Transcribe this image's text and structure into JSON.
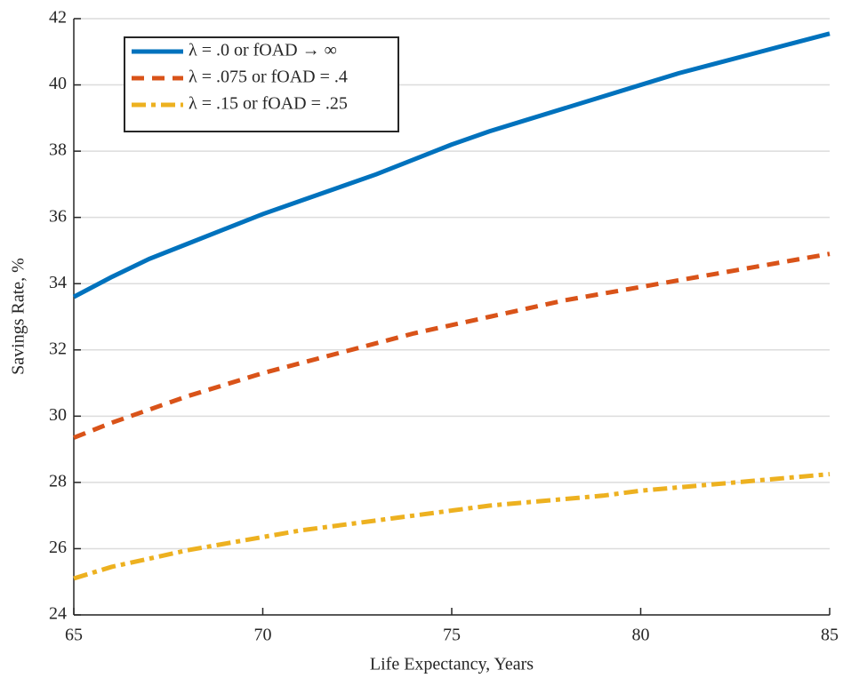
{
  "chart_data": {
    "type": "line",
    "x_label": "Life Expectancy, Years",
    "y_label": "Savings Rate, %",
    "x": [
      65,
      66,
      67,
      68,
      69,
      70,
      71,
      72,
      73,
      74,
      75,
      76,
      77,
      78,
      79,
      80,
      81,
      82,
      83,
      84,
      85
    ],
    "series": [
      {
        "name": "λ = .0 or fOAD → ∞",
        "color": "#0072bd",
        "dash": "solid",
        "values": [
          33.6,
          34.2,
          34.75,
          35.2,
          35.65,
          36.1,
          36.5,
          36.9,
          37.3,
          37.75,
          38.2,
          38.6,
          38.95,
          39.3,
          39.65,
          40.0,
          40.35,
          40.65,
          40.95,
          41.25,
          41.55
        ]
      },
      {
        "name": "λ = .075 or fOAD = .4",
        "color": "#d95319",
        "dash": "dashed",
        "values": [
          29.35,
          29.8,
          30.2,
          30.6,
          30.95,
          31.3,
          31.6,
          31.9,
          32.2,
          32.5,
          32.75,
          33.0,
          33.25,
          33.5,
          33.7,
          33.9,
          34.1,
          34.3,
          34.5,
          34.7,
          34.9
        ]
      },
      {
        "name": "λ = .15 or fOAD = .25",
        "color": "#edb120",
        "dash": "dashdot",
        "values": [
          25.1,
          25.45,
          25.7,
          25.95,
          26.15,
          26.35,
          26.55,
          26.7,
          26.85,
          27.0,
          27.15,
          27.3,
          27.4,
          27.5,
          27.6,
          27.75,
          27.85,
          27.95,
          28.05,
          28.15,
          28.25
        ]
      }
    ],
    "xlim": [
      65,
      85
    ],
    "xticks": [
      65,
      70,
      75,
      80,
      85
    ],
    "ylim": [
      24,
      42
    ],
    "yticks": [
      24,
      26,
      28,
      30,
      32,
      34,
      36,
      38,
      40,
      42
    ],
    "grid": true,
    "legend": "upper left"
  }
}
